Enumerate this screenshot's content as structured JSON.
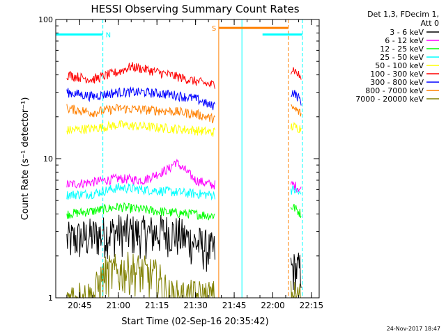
{
  "chart_data": {
    "type": "line",
    "title": "HESSI Observing Summary Count Rates",
    "xlabel": "Start Time (02-Sep-16 20:35:42)",
    "ylabel": "Count Rate (s⁻¹ detector⁻¹)",
    "y_scale": "log",
    "ylim": [
      1,
      100
    ],
    "xlim": [
      "20:35:42",
      "22:18:00"
    ],
    "y_ticks": [
      "1",
      "10",
      "100"
    ],
    "x_ticks": [
      "20:45",
      "21:00",
      "21:15",
      "21:30",
      "21:45",
      "22:00",
      "22:15"
    ],
    "legend_position": "top-right",
    "legend_header": [
      "Det 1,3, FDecim 1,",
      "Att 0"
    ],
    "footer_date": "24-Nov-2017 18:47",
    "flags": [
      {
        "label": "N",
        "start": "20:35:42",
        "end": "20:54:00",
        "color": "#00ffff",
        "level": 78
      },
      {
        "label": "S",
        "start": "21:39:00",
        "end": "22:06:00",
        "color": "#ff8000",
        "level": 87
      },
      {
        "label": "",
        "start": "21:56:00",
        "end": "22:11:30",
        "color": "#00ffff",
        "level": 78
      }
    ],
    "markers": [
      {
        "time": "20:54:00",
        "color": "#00ffff",
        "style": "dashed"
      },
      {
        "time": "21:39:00",
        "color": "#ff8000",
        "style": "solid"
      },
      {
        "time": "21:48:00",
        "color": "#00ffff",
        "style": "solid"
      },
      {
        "time": "22:06:00",
        "color": "#ff8000",
        "style": "dashed"
      },
      {
        "time": "22:11:30",
        "color": "#00ffff",
        "style": "dashed"
      }
    ],
    "data_gaps": [
      [
        "21:37:30",
        "22:07:00"
      ]
    ],
    "series": [
      {
        "name": "3 - 6 keV",
        "color": "#000000",
        "x": [
          "20:40",
          "20:50",
          "21:00",
          "21:10",
          "21:20",
          "21:30",
          "21:36",
          "22:08",
          "22:11"
        ],
        "values": [
          2.6,
          2.8,
          3.0,
          2.9,
          3.0,
          2.5,
          2.2,
          1.6,
          1.6
        ]
      },
      {
        "name": "6 - 12 keV",
        "color": "#ff00ff",
        "x": [
          "20:40",
          "20:50",
          "21:00",
          "21:10",
          "21:20",
          "21:22",
          "21:30",
          "21:36",
          "22:08",
          "22:11"
        ],
        "values": [
          6.5,
          6.8,
          7.2,
          7.0,
          8.5,
          9.5,
          7.0,
          6.5,
          6.5,
          6.0
        ]
      },
      {
        "name": "12 - 25 keV",
        "color": "#00ff00",
        "x": [
          "20:40",
          "20:50",
          "21:00",
          "21:10",
          "21:20",
          "21:30",
          "21:36",
          "22:08",
          "22:11"
        ],
        "values": [
          4.0,
          4.2,
          4.5,
          4.3,
          4.1,
          4.0,
          3.9,
          4.5,
          4.0
        ]
      },
      {
        "name": "25 - 50 keV",
        "color": "#00ffff",
        "x": [
          "20:40",
          "20:50",
          "21:00",
          "21:10",
          "21:20",
          "21:30",
          "21:36",
          "22:08",
          "22:11"
        ],
        "values": [
          5.5,
          5.6,
          6.2,
          6.0,
          5.8,
          5.6,
          5.5,
          6.0,
          5.5
        ]
      },
      {
        "name": "50 - 100 keV",
        "color": "#ffff00",
        "x": [
          "20:40",
          "20:50",
          "21:00",
          "21:10",
          "21:20",
          "21:30",
          "21:36",
          "22:08",
          "22:11"
        ],
        "values": [
          16,
          16.5,
          17.5,
          17,
          16.5,
          16,
          15.5,
          17,
          16.5
        ]
      },
      {
        "name": "100 - 300 keV",
        "color": "#ff0000",
        "x": [
          "20:40",
          "20:50",
          "21:00",
          "21:05",
          "21:10",
          "21:20",
          "21:30",
          "21:36",
          "22:08",
          "22:11"
        ],
        "values": [
          40,
          37,
          42,
          46,
          44,
          40,
          36,
          34,
          44,
          38
        ]
      },
      {
        "name": "300 - 800 keV",
        "color": "#0000ff",
        "x": [
          "20:40",
          "20:50",
          "21:00",
          "21:10",
          "21:20",
          "21:30",
          "21:36",
          "22:08",
          "22:11"
        ],
        "values": [
          30,
          28,
          30,
          30,
          29,
          27,
          24,
          30,
          26
        ]
      },
      {
        "name": "800 - 7000 keV",
        "color": "#ff8000",
        "x": [
          "20:40",
          "20:50",
          "21:00",
          "21:10",
          "21:20",
          "21:30",
          "21:36",
          "22:08",
          "22:11"
        ],
        "values": [
          23,
          21.5,
          23,
          22.5,
          22,
          21,
          19.5,
          23,
          21
        ]
      },
      {
        "name": "7000 - 20000 keV",
        "color": "#808000",
        "x": [
          "20:40",
          "20:50",
          "20:55",
          "21:05",
          "21:15",
          "21:20",
          "21:30",
          "21:36",
          "22:08",
          "22:11"
        ],
        "values": [
          1.0,
          1.0,
          1.5,
          1.6,
          1.4,
          1.0,
          1.0,
          1.0,
          1.0,
          1.0
        ]
      }
    ]
  }
}
